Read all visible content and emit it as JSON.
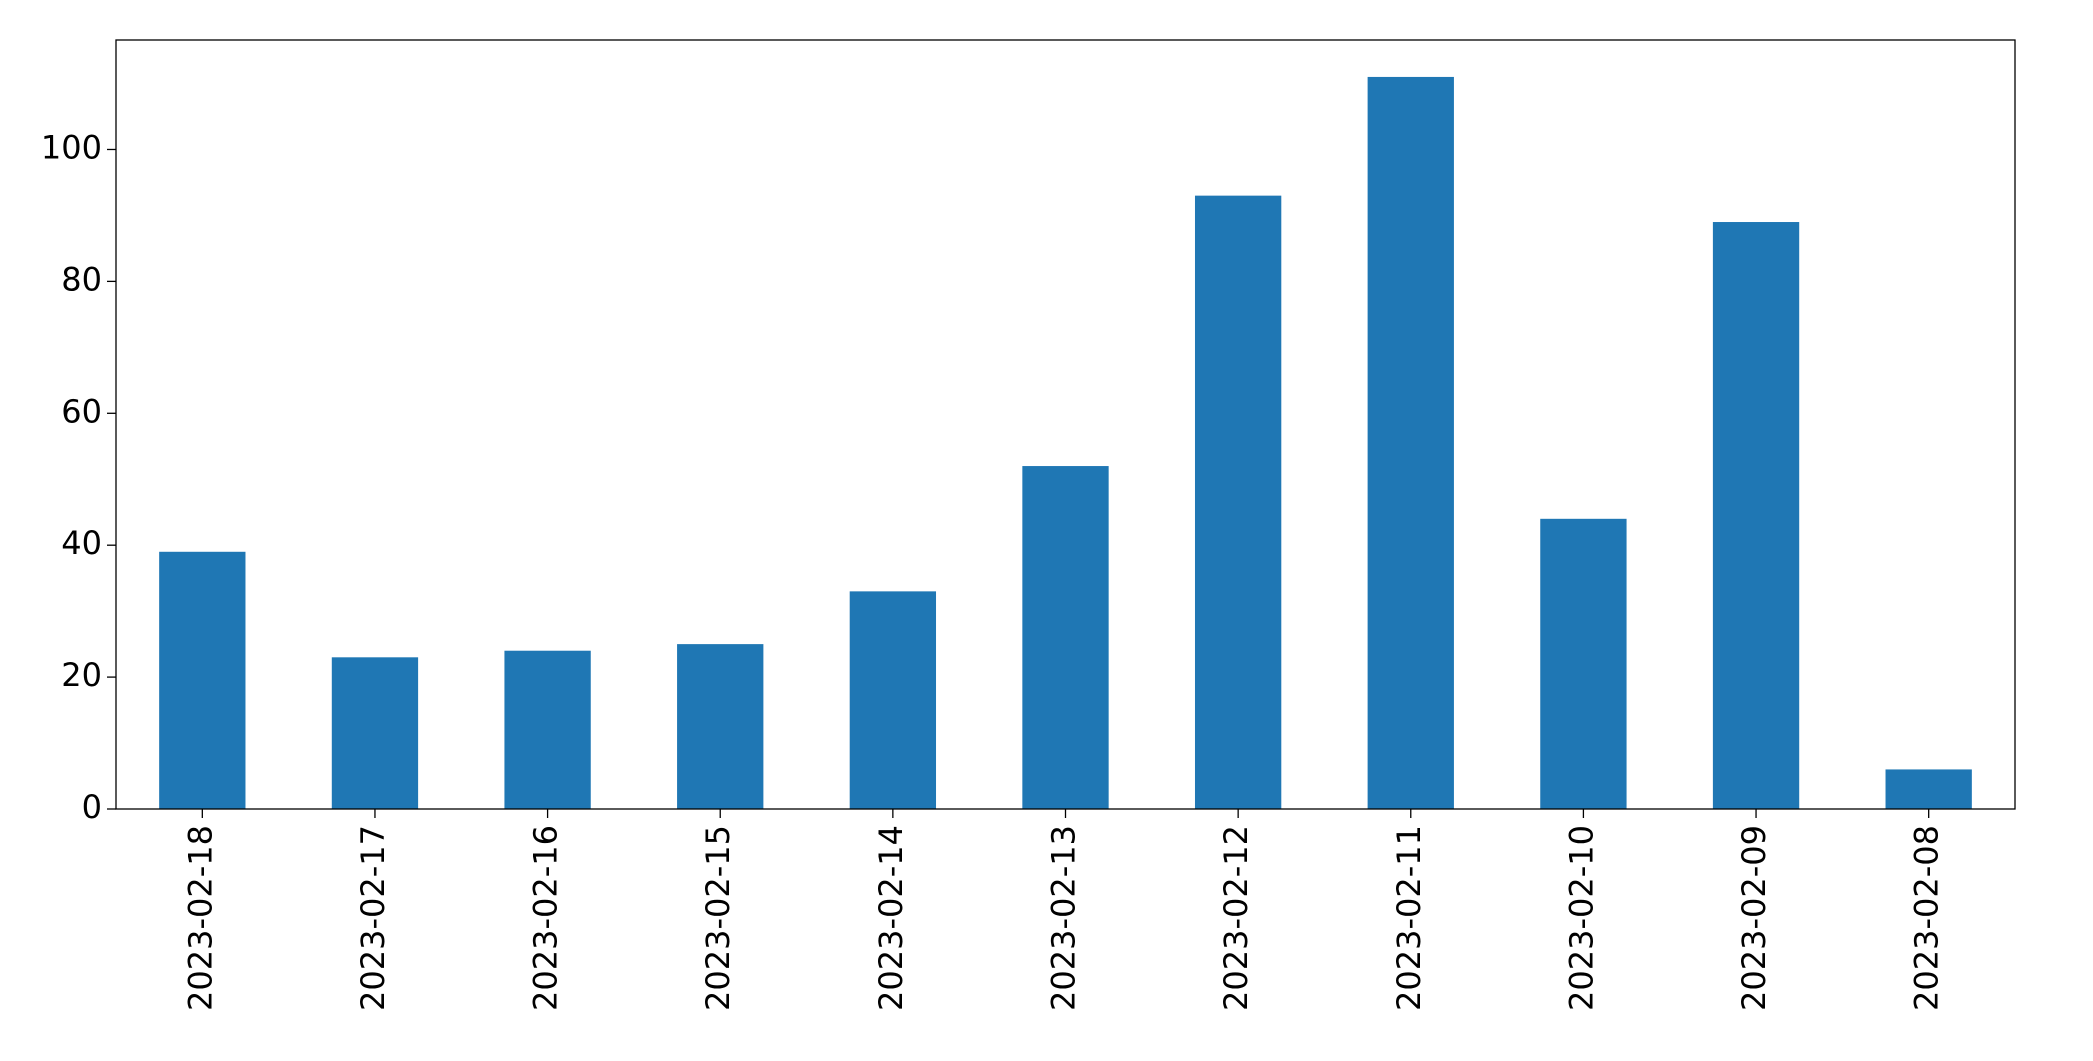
{
  "chart_data": {
    "type": "bar",
    "categories": [
      "2023-02-18",
      "2023-02-17",
      "2023-02-16",
      "2023-02-15",
      "2023-02-14",
      "2023-02-13",
      "2023-02-12",
      "2023-02-11",
      "2023-02-10",
      "2023-02-09",
      "2023-02-08"
    ],
    "values": [
      39,
      23,
      24,
      25,
      33,
      52,
      93,
      111,
      44,
      89,
      6
    ],
    "color": "#1f77b4",
    "ylim": [
      0,
      116.6
    ],
    "yticks": [
      0,
      20,
      40,
      60,
      80,
      100
    ],
    "grid": false
  }
}
